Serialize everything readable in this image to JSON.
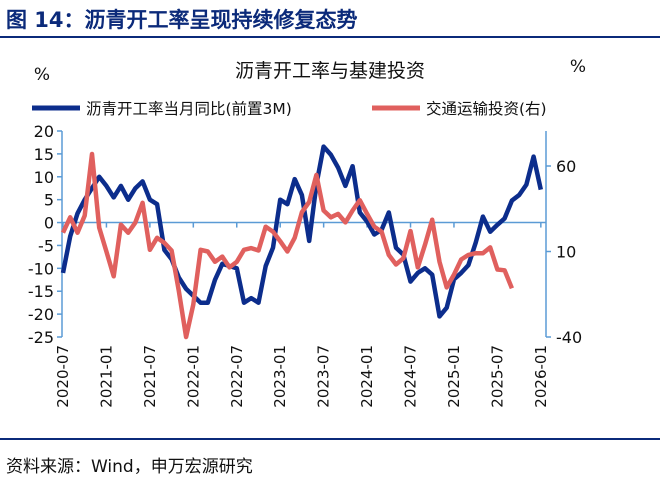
{
  "figure_title": "图 14：沥青开工率呈现持续修复态势",
  "source": "资料来源：Wind，申万宏源研究",
  "colors": {
    "blue": "#0c2d8c",
    "red": "#e0605e",
    "axis": "#5b9bd5",
    "title": "#0b2a7a"
  },
  "chart_data": {
    "type": "line",
    "title": "沥青开工率与基建投资",
    "ylabel_left": "%",
    "ylabel_right": "%",
    "ylim_left": [
      -25,
      20
    ],
    "yticks_left": [
      20,
      15,
      10,
      5,
      0,
      -5,
      -10,
      -15,
      -20,
      -25
    ],
    "ylim_right": [
      -40,
      80
    ],
    "yticks_right": [
      60,
      10,
      -40
    ],
    "xticks": [
      "2020-07",
      "2021-01",
      "2021-07",
      "2022-01",
      "2022-07",
      "2023-01",
      "2023-07",
      "2024-01",
      "2024-07",
      "2025-01",
      "2025-07",
      "2026-01"
    ],
    "legend_placement": "top",
    "grid": false,
    "series": [
      {
        "name": "沥青开工率当月同比(前置3M)",
        "axis": "left",
        "start": "2020-07",
        "values": [
          -11,
          -3,
          2,
          5,
          7.5,
          10,
          8,
          5.5,
          8,
          5,
          7.5,
          9,
          5,
          4,
          -6,
          -8,
          -12,
          -14.5,
          -16,
          -17.5,
          -17.5,
          -12.5,
          -9,
          -9.5,
          -10,
          -17.5,
          -16.5,
          -17.5,
          -9.5,
          -5.5,
          5,
          4,
          9.5,
          6,
          -4,
          8.3,
          16.6,
          14.8,
          12,
          8,
          12.3,
          2.2,
          0.2,
          -2.6,
          -1.6,
          2.2,
          -5.5,
          -7,
          -12.9,
          -11,
          -10,
          -11.4,
          -20.5,
          -18.6,
          -12.4,
          -11,
          -9.3,
          -4.4,
          1.3,
          -2,
          -0.5,
          0.9,
          4.8,
          6,
          8.3,
          14.4,
          7.2
        ]
      },
      {
        "name": "交通运输投资(右)",
        "axis": "right",
        "start": "2020-07",
        "values": [
          21,
          30,
          21,
          31,
          67,
          24,
          10,
          -4.5,
          25.7,
          21,
          27,
          38.5,
          11,
          18,
          15,
          10.6,
          -13,
          -40,
          -21,
          11,
          10,
          4,
          7,
          0.7,
          4,
          11,
          12,
          10.6,
          24.5,
          21.6,
          16,
          10,
          18,
          33,
          39,
          54.8,
          34,
          30,
          32,
          27,
          34,
          40,
          32,
          24.5,
          21.6,
          8,
          2.4,
          6,
          22,
          0.7,
          14,
          28.6,
          4,
          -11,
          -3.5,
          5.3,
          8,
          9,
          9,
          12.4,
          -0.5,
          -1,
          -11.5
        ]
      }
    ]
  }
}
